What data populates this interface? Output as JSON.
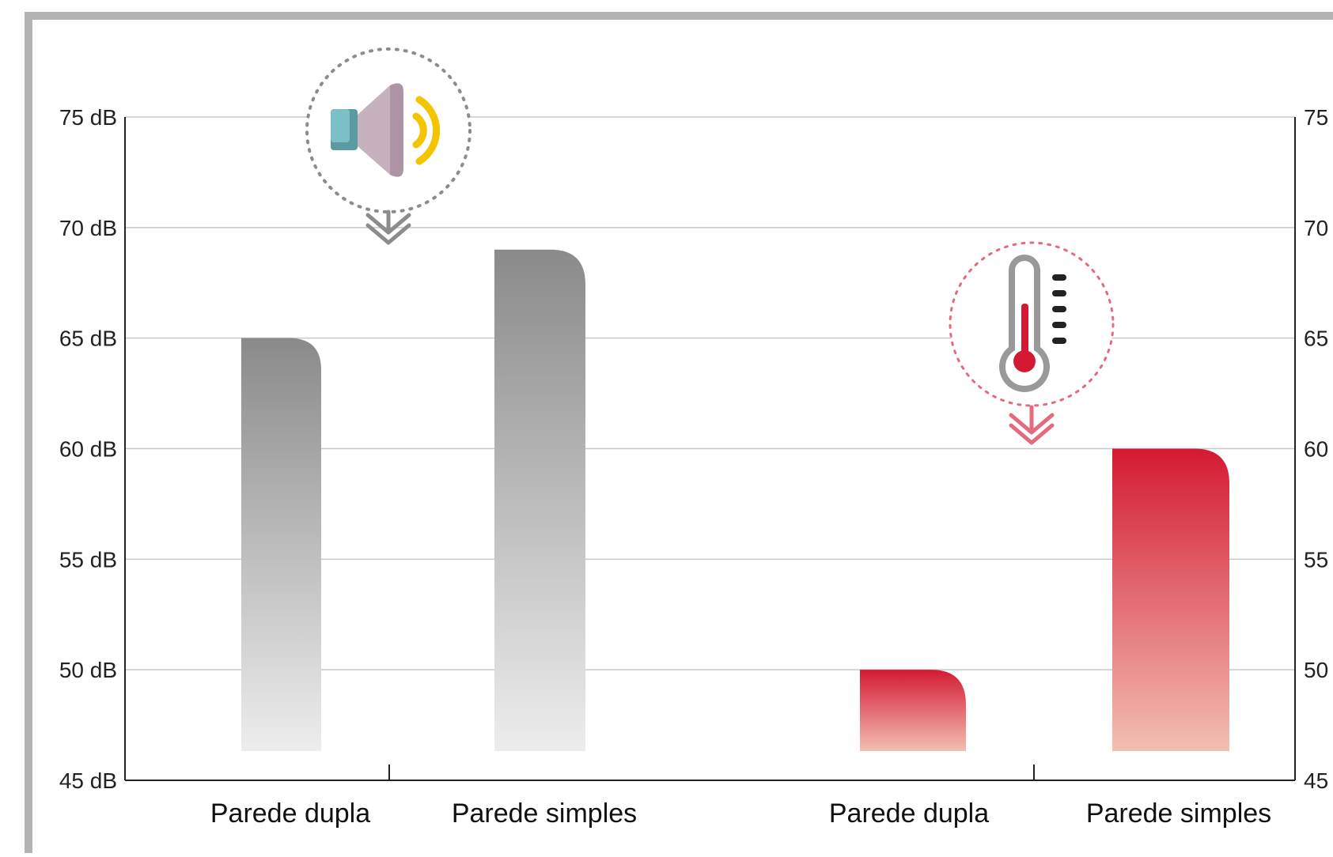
{
  "chart_data": {
    "type": "bar",
    "title": "",
    "xlabel": "",
    "ylabel": "",
    "ylim": [
      45,
      75
    ],
    "yticks": [
      45,
      50,
      55,
      60,
      65,
      70,
      75
    ],
    "ytick_labels": [
      "45 dB",
      "50 dB",
      "55 dB",
      "60 dB",
      "65 dB",
      "70 dB",
      "75 dB"
    ],
    "right_axis_tick_labels": [
      "45",
      "50",
      "55",
      "60",
      "65",
      "70",
      "75"
    ],
    "grid": true,
    "groups": [
      {
        "icon": "speaker-icon",
        "color_top": "#8a8a8a",
        "color_bottom": "#ededed",
        "categories": [
          "Parede dupla",
          "Parede simples"
        ],
        "values": [
          65,
          69
        ]
      },
      {
        "icon": "thermometer-icon",
        "color_top": "#d41a33",
        "color_bottom": "#f2bfb2",
        "categories": [
          "Parede dupla",
          "Parede simples"
        ],
        "values": [
          50,
          60
        ]
      }
    ]
  },
  "colors": {
    "frame": "#b3b3b3",
    "grid": "#c8c8c8",
    "axis": "#222222",
    "speaker_ring": "#8c8c8c",
    "thermometer_ring": "#e46a7e",
    "sound_waves": "#f5c400"
  }
}
